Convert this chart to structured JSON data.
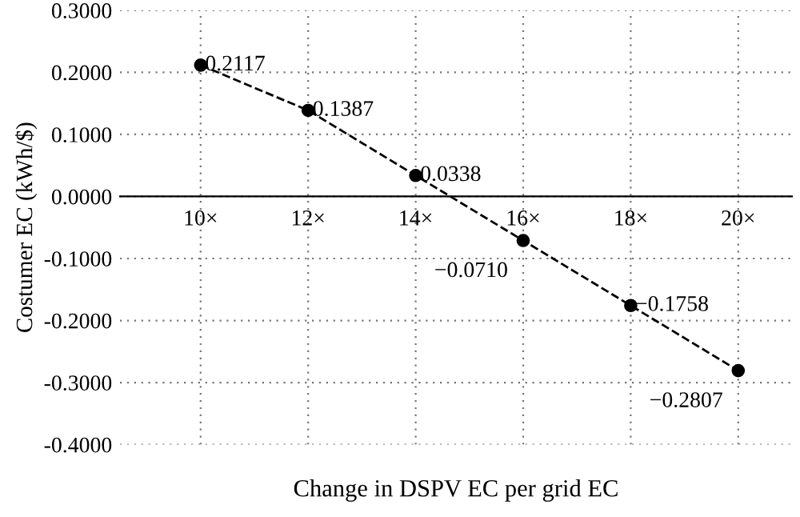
{
  "chart_data": {
    "type": "line",
    "xlabel": "Change in DSPV EC per grid EC",
    "ylabel": "Costumer EC (kWh/$)",
    "categories": [
      "10×",
      "12×",
      "14×",
      "16×",
      "18×",
      "20×"
    ],
    "series": [
      {
        "color": "#000000",
        "values": [
          0.2117,
          0.1387,
          0.0338,
          -0.071,
          -0.1758,
          -0.2807
        ],
        "value_labels": [
          "0.2117",
          "0.1387",
          "0.0338",
          "−0.0710",
          "−0.1758",
          "−0.2807"
        ]
      }
    ],
    "ylim": [
      -0.4,
      0.3
    ],
    "yticks": [
      {
        "value": -0.4,
        "label": "-0.4000"
      },
      {
        "value": -0.3,
        "label": "-0.3000"
      },
      {
        "value": -0.2,
        "label": "-0.2000"
      },
      {
        "value": -0.1,
        "label": "-0.1000"
      },
      {
        "value": 0,
        "label": "0.0000"
      },
      {
        "value": 0.1,
        "label": "0.1000"
      },
      {
        "value": 0.2,
        "label": "0.2000"
      },
      {
        "value": 0.3,
        "label": "0.3000"
      }
    ],
    "grid": true,
    "marker": "circle",
    "line_style": "dashed",
    "legend": false
  }
}
